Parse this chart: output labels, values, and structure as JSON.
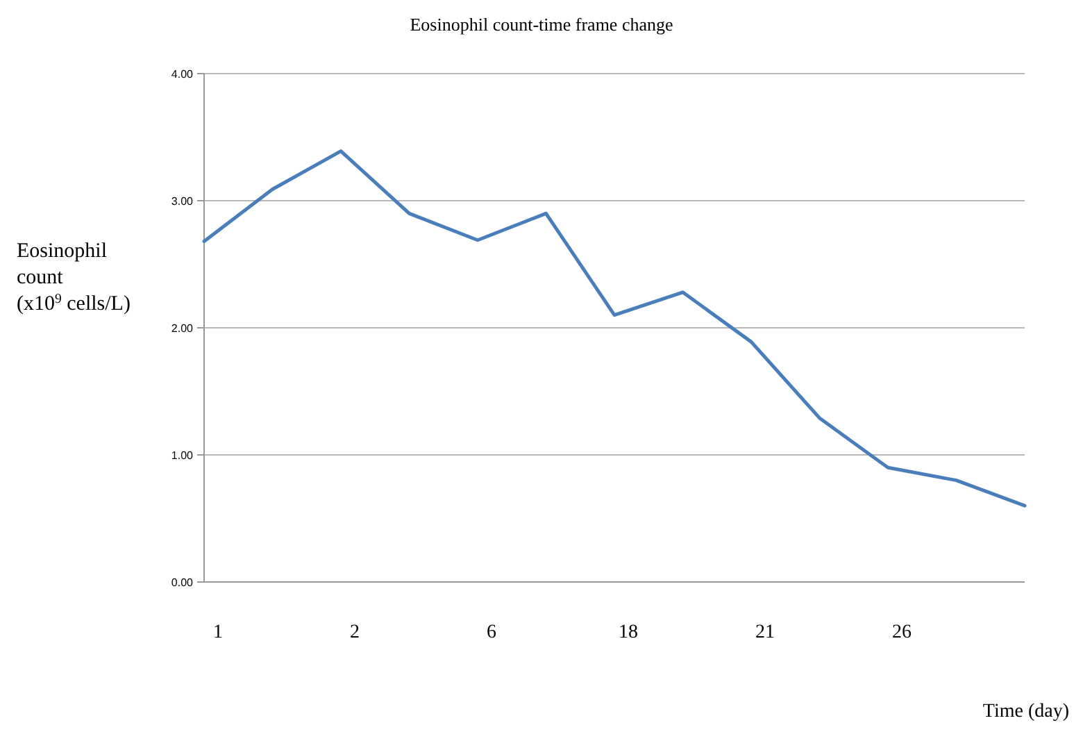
{
  "chart_data": {
    "type": "line",
    "title": "Eosinophil count-time frame change",
    "xlabel": "Time (day)",
    "ylabel": "Eosinophil\ncount\n(x10$^{9}$ cells/L)",
    "categories": [
      "1",
      null,
      "2",
      null,
      "6",
      null,
      "18",
      null,
      "21",
      null,
      "26",
      null,
      null
    ],
    "series": [
      {
        "color": "#4a7ebb",
        "values": [
          2.68,
          3.09,
          3.39,
          2.9,
          2.69,
          2.9,
          2.1,
          2.28,
          1.89,
          1.29,
          0.9,
          0.8,
          0.6
        ]
      }
    ],
    "ylim": [
      0,
      4
    ],
    "yticks": [
      {
        "value": 0,
        "label": "0.00"
      },
      {
        "value": 1,
        "label": "1.00"
      },
      {
        "value": 2,
        "label": "2.00"
      },
      {
        "value": 3,
        "label": "3.00"
      },
      {
        "value": 4,
        "label": "4.00"
      }
    ],
    "grid": "y",
    "marker": "none",
    "line_style": "solid"
  }
}
